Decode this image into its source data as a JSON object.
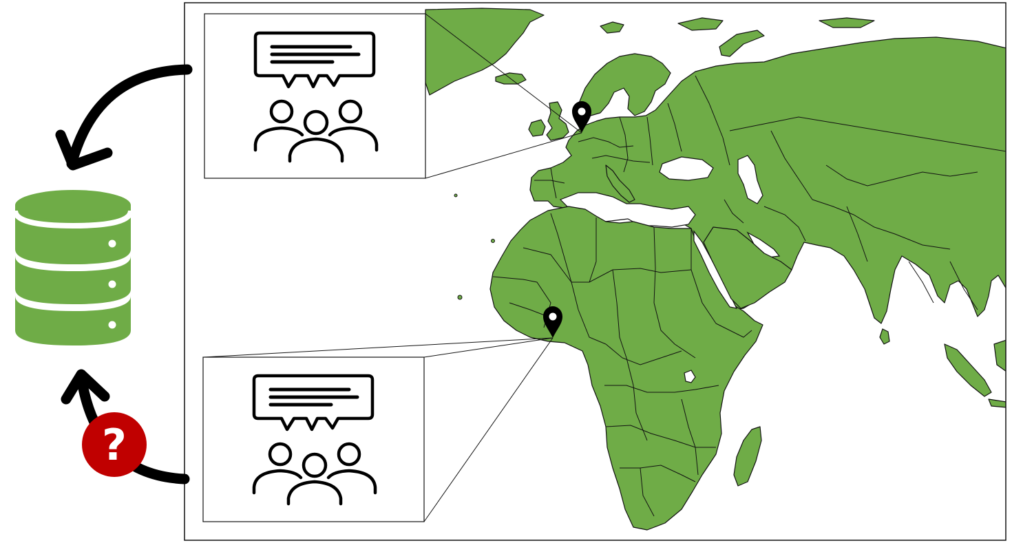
{
  "colors": {
    "land": "#6fac47",
    "outline": "#111111",
    "database": "#6fac47",
    "question_badge": "#c00000",
    "arrow": "#000000",
    "background": "#ffffff"
  },
  "database": {
    "icon": "database-icon",
    "disks": 3
  },
  "question_badge": {
    "glyph": "?",
    "icon": "question-mark-icon"
  },
  "callouts": [
    {
      "id": "europe",
      "icon": "chat-bubble-with-group-icon",
      "location": "location-pin-netherlands",
      "arrow": "curved-arrow-to-database"
    },
    {
      "id": "west-africa",
      "icon": "chat-bubble-with-group-icon",
      "location": "location-pin-nigeria",
      "arrow": "curved-arrow-to-database-uncertain"
    }
  ]
}
